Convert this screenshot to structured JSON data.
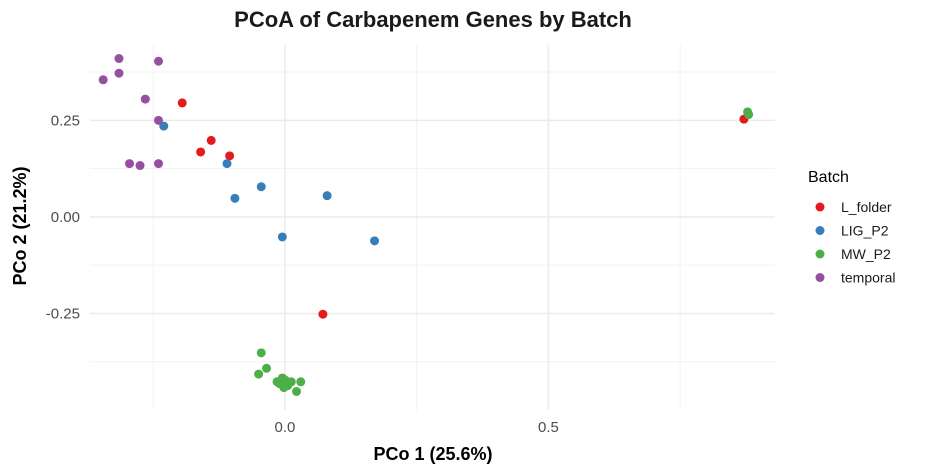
{
  "chart_data": {
    "type": "scatter",
    "title": "PCoA of Carbapenem Genes by Batch",
    "xlabel": "PCo 1 (25.6%)",
    "ylabel": "PCo 2 (21.2%)",
    "xlim": [
      -0.37,
      0.93
    ],
    "ylim": [
      -0.5,
      0.445
    ],
    "x_ticks": [
      0.0,
      0.5
    ],
    "x_tick_labels": [
      "0.0",
      "0.5"
    ],
    "y_ticks": [
      -0.25,
      0.0,
      0.25
    ],
    "y_tick_labels": [
      "-0.25",
      "0.00",
      "0.25"
    ],
    "grid": true,
    "legend_title": "Batch",
    "legend_position": "right",
    "series": [
      {
        "name": "L_folder",
        "color": "#E41A1C",
        "points": [
          [
            -0.195,
            0.295
          ],
          [
            -0.14,
            0.198
          ],
          [
            -0.16,
            0.168
          ],
          [
            -0.105,
            0.158
          ],
          [
            0.072,
            -0.252
          ],
          [
            0.871,
            0.253
          ]
        ]
      },
      {
        "name": "LIG_P2",
        "color": "#377EB8",
        "points": [
          [
            -0.23,
            0.235
          ],
          [
            -0.11,
            0.138
          ],
          [
            -0.045,
            0.078
          ],
          [
            -0.095,
            0.048
          ],
          [
            0.08,
            0.055
          ],
          [
            -0.005,
            -0.052
          ],
          [
            0.17,
            -0.062
          ]
        ]
      },
      {
        "name": "MW_P2",
        "color": "#4DAF4A",
        "points": [
          [
            0.878,
            0.272
          ],
          [
            0.88,
            0.265
          ],
          [
            -0.045,
            -0.352
          ],
          [
            -0.035,
            -0.392
          ],
          [
            -0.05,
            -0.407
          ],
          [
            -0.015,
            -0.427
          ],
          [
            -0.005,
            -0.417
          ],
          [
            0.0,
            -0.422
          ],
          [
            0.005,
            -0.437
          ],
          [
            0.012,
            -0.427
          ],
          [
            -0.01,
            -0.432
          ],
          [
            0.03,
            -0.427
          ],
          [
            0.022,
            -0.452
          ],
          [
            -0.002,
            -0.442
          ]
        ]
      },
      {
        "name": "temporal",
        "color": "#984EA3",
        "points": [
          [
            -0.315,
            0.41
          ],
          [
            -0.24,
            0.403
          ],
          [
            -0.315,
            0.372
          ],
          [
            -0.345,
            0.355
          ],
          [
            -0.265,
            0.305
          ],
          [
            -0.24,
            0.25
          ],
          [
            -0.295,
            0.138
          ],
          [
            -0.275,
            0.133
          ],
          [
            -0.24,
            0.138
          ]
        ]
      }
    ]
  }
}
